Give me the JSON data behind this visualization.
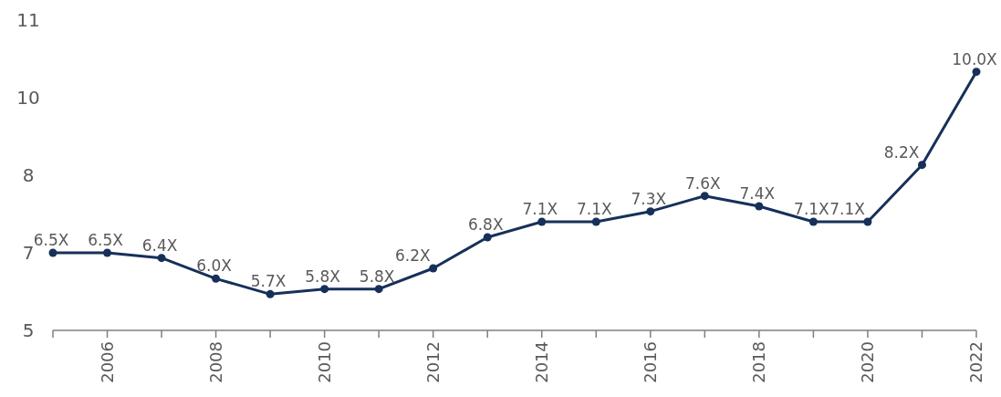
{
  "chart_data": {
    "type": "line",
    "x": [
      2005,
      2006,
      2007,
      2008,
      2009,
      2010,
      2011,
      2012,
      2013,
      2014,
      2015,
      2016,
      2017,
      2018,
      2019,
      2020,
      2021,
      2022
    ],
    "series": [
      {
        "color": "#17305a",
        "values": [
          6.5,
          6.5,
          6.4,
          6.0,
          5.7,
          5.8,
          5.8,
          6.2,
          6.8,
          7.1,
          7.1,
          7.3,
          7.6,
          7.4,
          7.1,
          7.1,
          8.2,
          10.0
        ],
        "value_labels": [
          "6.5X",
          "6.5X",
          "6.4X",
          "6.0X",
          "5.7X",
          "5.8X",
          "5.8X",
          "6.2X",
          "6.8X",
          "7.1X",
          "7.1X",
          "7.3X",
          "7.6X",
          "7.4X",
          "7.1X",
          "7.1X",
          "8.2X",
          "10.0X"
        ]
      }
    ],
    "xlim": [
      2005,
      2022
    ],
    "xticks": [
      {
        "value": 2005,
        "label": null
      },
      2006,
      {
        "value": 2007,
        "label": null
      },
      2008,
      {
        "value": 2009,
        "label": null
      },
      2010,
      {
        "value": 2011,
        "label": null
      },
      2012,
      {
        "value": 2013,
        "label": null
      },
      2014,
      {
        "value": 2015,
        "label": null
      },
      2016,
      {
        "value": 2017,
        "label": null
      },
      2018,
      {
        "value": 2019,
        "label": null
      },
      2020,
      {
        "value": 2021,
        "label": null
      },
      2022
    ],
    "ylim": [
      5,
      11
    ],
    "yticks": [
      5,
      {
        "value": 6.5,
        "label": "7"
      },
      8,
      {
        "value": 9.5,
        "label": "10"
      },
      11
    ],
    "marker": "circle",
    "line_style": "solid"
  }
}
